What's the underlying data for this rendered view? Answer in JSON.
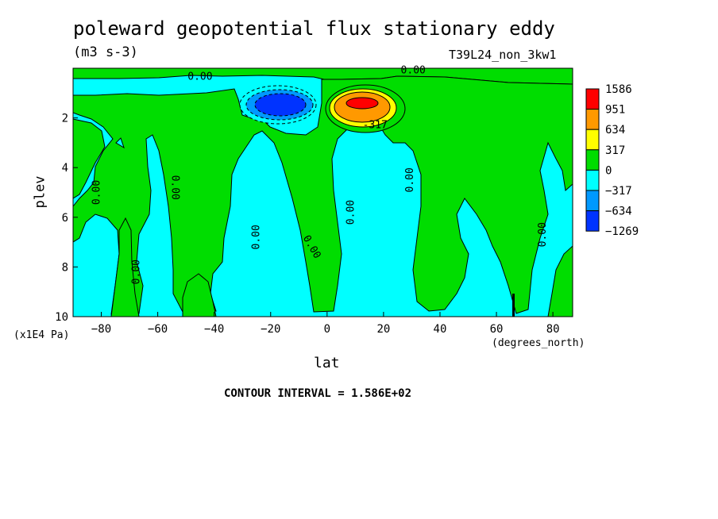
{
  "chart_data": {
    "type": "heatmap",
    "title": "poleward geopotential flux stationary eddy",
    "units": "(m3 s-3)",
    "experiment": "T39L24_non_3kw1",
    "xlabel": "lat",
    "xunit": "(degrees_north)",
    "ylabel": "plev",
    "yunit": "(x1E4 Pa)",
    "contour_interval": "CONTOUR INTERVAL = 1.586E+02",
    "xlim": [
      -90,
      87
    ],
    "ylim": [
      10,
      0
    ],
    "x_ticks": [
      -80,
      -60,
      -40,
      -20,
      0,
      20,
      40,
      60,
      80
    ],
    "x_tick_labels": [
      "−80",
      "−60",
      "−40",
      "−20",
      "0",
      "20",
      "40",
      "60",
      "80"
    ],
    "y_ticks": [
      2,
      4,
      6,
      8,
      10
    ],
    "y_tick_labels": [
      "2",
      "4",
      "6",
      "8",
      "10"
    ],
    "colorbar": {
      "labels": [
        "1586",
        "951",
        "634",
        "317",
        "0",
        "−317",
        "−634",
        "−1269"
      ],
      "colors": [
        "#ff0000",
        "#ff9900",
        "#ffff00",
        "#00dd00",
        "#00ffff",
        "#0099ff",
        "#0033ff"
      ]
    },
    "contour_labels": [
      {
        "text": "0.00",
        "x": -45.0,
        "y": 0.35,
        "rotate": 0
      },
      {
        "text": "0.00",
        "x": 30.5,
        "y": 0.1,
        "rotate": 0
      },
      {
        "text": "-317",
        "x": 17.0,
        "y": 2.3,
        "rotate": 0
      },
      {
        "text": "0.00",
        "x": -81.5,
        "y": 5.0,
        "rotate": -90
      },
      {
        "text": "0.00",
        "x": -54.0,
        "y": 4.8,
        "rotate": 90
      },
      {
        "text": "0.00",
        "x": -25.0,
        "y": 6.8,
        "rotate": -90
      },
      {
        "text": "0.00",
        "x": -5.5,
        "y": 7.2,
        "rotate": 60
      },
      {
        "text": "0.00",
        "x": 8.5,
        "y": 5.8,
        "rotate": -90
      },
      {
        "text": "0.00",
        "x": 29.5,
        "y": 4.5,
        "rotate": -90
      },
      {
        "text": "0.00",
        "x": 76.5,
        "y": 6.7,
        "rotate": -90
      },
      {
        "text": "0.00",
        "x": -67.5,
        "y": 8.2,
        "rotate": -90
      }
    ],
    "features": [
      {
        "name": "negative-core",
        "center_lat": -13,
        "center_plev": 1.4,
        "min_level": "−1269"
      },
      {
        "name": "positive-core",
        "center_lat": 13,
        "center_plev": 1.4,
        "max_level": "1586"
      }
    ]
  }
}
